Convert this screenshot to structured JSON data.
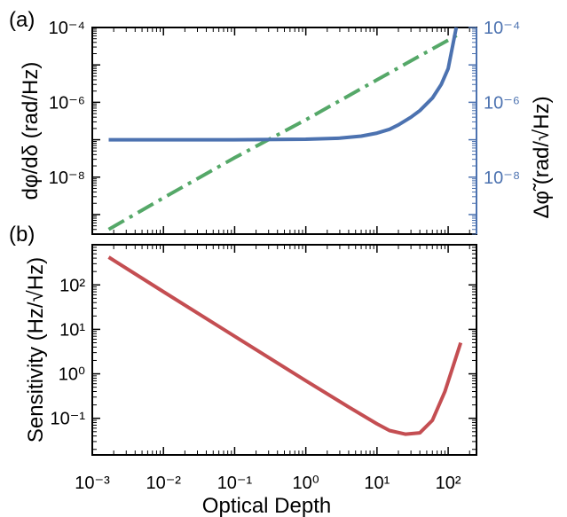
{
  "chart_data": [
    {
      "panel_label": "(a)",
      "type": "line",
      "xscale": "log",
      "xlim": [
        0.001,
        250
      ],
      "x_tick_values": [
        0.001,
        0.01,
        0.1,
        1,
        10,
        100
      ],
      "left_axis": {
        "label": "dφ/dδ (rad/Hz)",
        "scale": "log",
        "ylim": [
          3e-10,
          0.0001
        ],
        "tick_values": [
          1e-08,
          1e-06,
          0.0001
        ],
        "tick_labels": [
          "10⁻⁸",
          "10⁻⁶",
          "10⁻⁴"
        ],
        "color": "#000000"
      },
      "right_axis": {
        "label": "Δφ̃ (rad/√Hz)",
        "scale": "log",
        "ylim": [
          3e-10,
          0.0001
        ],
        "tick_values": [
          1e-08,
          1e-06,
          0.0001
        ],
        "tick_labels": [
          "10⁻⁸",
          "10⁻⁶",
          "10⁻⁴"
        ],
        "color": "#4c72b0"
      },
      "grid": false,
      "series": [
        {
          "axis": "left",
          "color": "#55a868",
          "style": "dashdot",
          "x": [
            0.0017,
            0.01,
            0.1,
            1,
            10,
            50,
            150
          ],
          "y": [
            4e-10,
            2.8e-09,
            3.3e-08,
            3.4e-07,
            4e-06,
            2.2e-05,
            7e-05
          ]
        },
        {
          "axis": "right",
          "color": "#4c72b0",
          "style": "solid",
          "x": [
            0.0017,
            0.01,
            0.1,
            1,
            3,
            6,
            10,
            15,
            20,
            30,
            40,
            60,
            80,
            100,
            130
          ],
          "y": [
            1e-07,
            1e-07,
            1e-07,
            1.03e-07,
            1.1e-07,
            1.25e-07,
            1.5e-07,
            1.9e-07,
            2.5e-07,
            4e-07,
            6e-07,
            1.3e-06,
            3e-06,
            8e-06,
            0.0001
          ]
        }
      ]
    },
    {
      "panel_label": "(b)",
      "type": "line",
      "xscale": "log",
      "xlim": [
        0.001,
        250
      ],
      "x_tick_values": [
        0.001,
        0.01,
        0.1,
        1,
        10,
        100
      ],
      "x_tick_labels": [
        "10⁻³",
        "10⁻²",
        "10⁻¹",
        "10⁰",
        "10¹",
        "10²"
      ],
      "xlabel": "Optical Depth",
      "ylabel": "Sensitivity (Hz/√Hz)",
      "yscale": "log",
      "ylim": [
        0.015,
        800
      ],
      "y_tick_values": [
        0.1,
        1,
        10,
        100
      ],
      "y_tick_labels": [
        "10⁻¹",
        "10⁰",
        "10¹",
        "10²"
      ],
      "grid": false,
      "series": [
        {
          "color": "#c44e52",
          "style": "solid",
          "x": [
            0.0017,
            0.01,
            0.1,
            1,
            4,
            10,
            15,
            25,
            40,
            60,
            90,
            150
          ],
          "y": [
            420,
            70,
            7,
            0.7,
            0.18,
            0.075,
            0.053,
            0.044,
            0.047,
            0.09,
            0.4,
            5
          ]
        }
      ]
    }
  ]
}
